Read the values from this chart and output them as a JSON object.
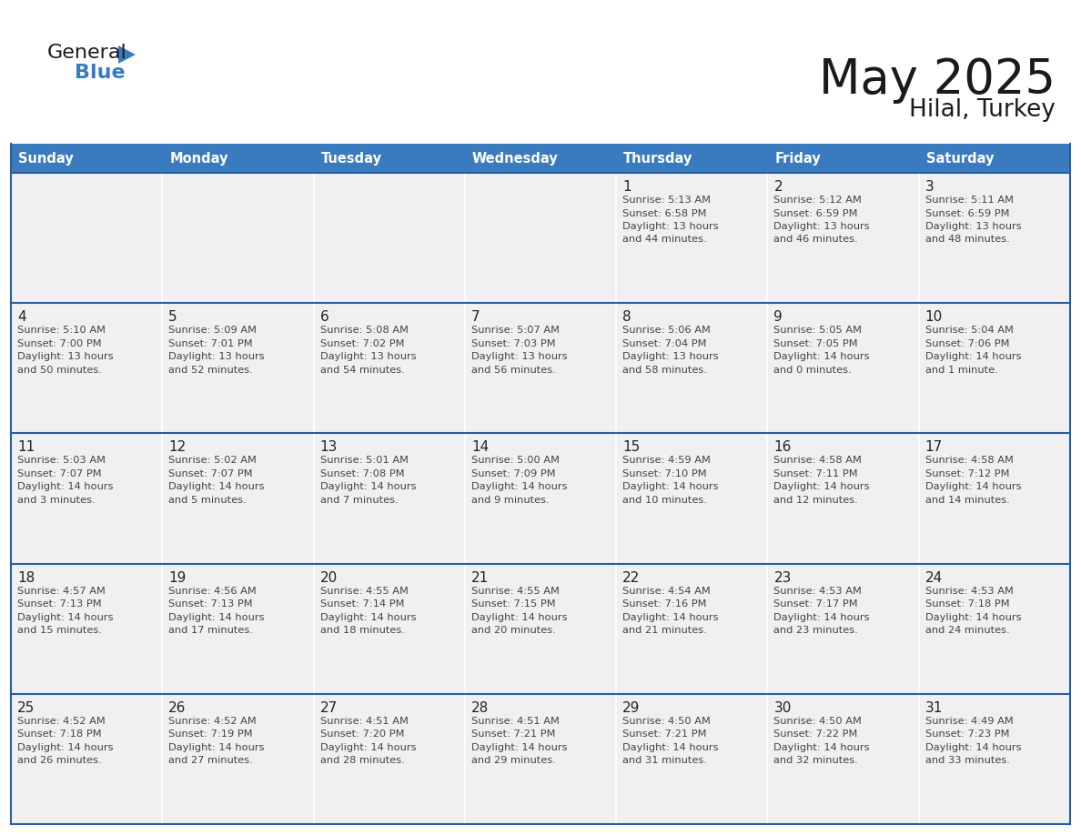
{
  "title": "May 2025",
  "subtitle": "Hilal, Turkey",
  "header_color": "#3a7bbf",
  "header_text_color": "#ffffff",
  "day_names": [
    "Sunday",
    "Monday",
    "Tuesday",
    "Wednesday",
    "Thursday",
    "Friday",
    "Saturday"
  ],
  "cell_bg_color": "#f0f0f0",
  "border_color": "#2a5d9e",
  "weeks": [
    [
      {
        "day": null
      },
      {
        "day": null
      },
      {
        "day": null
      },
      {
        "day": null
      },
      {
        "day": 1,
        "sunrise": "5:13 AM",
        "sunset": "6:58 PM",
        "daylight": "13 hours",
        "daylight2": "and 44 minutes."
      },
      {
        "day": 2,
        "sunrise": "5:12 AM",
        "sunset": "6:59 PM",
        "daylight": "13 hours",
        "daylight2": "and 46 minutes."
      },
      {
        "day": 3,
        "sunrise": "5:11 AM",
        "sunset": "6:59 PM",
        "daylight": "13 hours",
        "daylight2": "and 48 minutes."
      }
    ],
    [
      {
        "day": 4,
        "sunrise": "5:10 AM",
        "sunset": "7:00 PM",
        "daylight": "13 hours",
        "daylight2": "and 50 minutes."
      },
      {
        "day": 5,
        "sunrise": "5:09 AM",
        "sunset": "7:01 PM",
        "daylight": "13 hours",
        "daylight2": "and 52 minutes."
      },
      {
        "day": 6,
        "sunrise": "5:08 AM",
        "sunset": "7:02 PM",
        "daylight": "13 hours",
        "daylight2": "and 54 minutes."
      },
      {
        "day": 7,
        "sunrise": "5:07 AM",
        "sunset": "7:03 PM",
        "daylight": "13 hours",
        "daylight2": "and 56 minutes."
      },
      {
        "day": 8,
        "sunrise": "5:06 AM",
        "sunset": "7:04 PM",
        "daylight": "13 hours",
        "daylight2": "and 58 minutes."
      },
      {
        "day": 9,
        "sunrise": "5:05 AM",
        "sunset": "7:05 PM",
        "daylight": "14 hours",
        "daylight2": "and 0 minutes."
      },
      {
        "day": 10,
        "sunrise": "5:04 AM",
        "sunset": "7:06 PM",
        "daylight": "14 hours",
        "daylight2": "and 1 minute."
      }
    ],
    [
      {
        "day": 11,
        "sunrise": "5:03 AM",
        "sunset": "7:07 PM",
        "daylight": "14 hours",
        "daylight2": "and 3 minutes."
      },
      {
        "day": 12,
        "sunrise": "5:02 AM",
        "sunset": "7:07 PM",
        "daylight": "14 hours",
        "daylight2": "and 5 minutes."
      },
      {
        "day": 13,
        "sunrise": "5:01 AM",
        "sunset": "7:08 PM",
        "daylight": "14 hours",
        "daylight2": "and 7 minutes."
      },
      {
        "day": 14,
        "sunrise": "5:00 AM",
        "sunset": "7:09 PM",
        "daylight": "14 hours",
        "daylight2": "and 9 minutes."
      },
      {
        "day": 15,
        "sunrise": "4:59 AM",
        "sunset": "7:10 PM",
        "daylight": "14 hours",
        "daylight2": "and 10 minutes."
      },
      {
        "day": 16,
        "sunrise": "4:58 AM",
        "sunset": "7:11 PM",
        "daylight": "14 hours",
        "daylight2": "and 12 minutes."
      },
      {
        "day": 17,
        "sunrise": "4:58 AM",
        "sunset": "7:12 PM",
        "daylight": "14 hours",
        "daylight2": "and 14 minutes."
      }
    ],
    [
      {
        "day": 18,
        "sunrise": "4:57 AM",
        "sunset": "7:13 PM",
        "daylight": "14 hours",
        "daylight2": "and 15 minutes."
      },
      {
        "day": 19,
        "sunrise": "4:56 AM",
        "sunset": "7:13 PM",
        "daylight": "14 hours",
        "daylight2": "and 17 minutes."
      },
      {
        "day": 20,
        "sunrise": "4:55 AM",
        "sunset": "7:14 PM",
        "daylight": "14 hours",
        "daylight2": "and 18 minutes."
      },
      {
        "day": 21,
        "sunrise": "4:55 AM",
        "sunset": "7:15 PM",
        "daylight": "14 hours",
        "daylight2": "and 20 minutes."
      },
      {
        "day": 22,
        "sunrise": "4:54 AM",
        "sunset": "7:16 PM",
        "daylight": "14 hours",
        "daylight2": "and 21 minutes."
      },
      {
        "day": 23,
        "sunrise": "4:53 AM",
        "sunset": "7:17 PM",
        "daylight": "14 hours",
        "daylight2": "and 23 minutes."
      },
      {
        "day": 24,
        "sunrise": "4:53 AM",
        "sunset": "7:18 PM",
        "daylight": "14 hours",
        "daylight2": "and 24 minutes."
      }
    ],
    [
      {
        "day": 25,
        "sunrise": "4:52 AM",
        "sunset": "7:18 PM",
        "daylight": "14 hours",
        "daylight2": "and 26 minutes."
      },
      {
        "day": 26,
        "sunrise": "4:52 AM",
        "sunset": "7:19 PM",
        "daylight": "14 hours",
        "daylight2": "and 27 minutes."
      },
      {
        "day": 27,
        "sunrise": "4:51 AM",
        "sunset": "7:20 PM",
        "daylight": "14 hours",
        "daylight2": "and 28 minutes."
      },
      {
        "day": 28,
        "sunrise": "4:51 AM",
        "sunset": "7:21 PM",
        "daylight": "14 hours",
        "daylight2": "and 29 minutes."
      },
      {
        "day": 29,
        "sunrise": "4:50 AM",
        "sunset": "7:21 PM",
        "daylight": "14 hours",
        "daylight2": "and 31 minutes."
      },
      {
        "day": 30,
        "sunrise": "4:50 AM",
        "sunset": "7:22 PM",
        "daylight": "14 hours",
        "daylight2": "and 32 minutes."
      },
      {
        "day": 31,
        "sunrise": "4:49 AM",
        "sunset": "7:23 PM",
        "daylight": "14 hours",
        "daylight2": "and 33 minutes."
      }
    ]
  ]
}
